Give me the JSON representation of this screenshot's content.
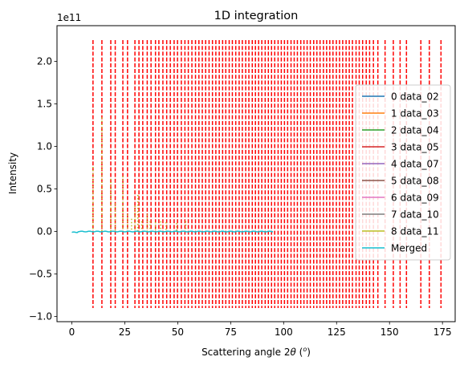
{
  "chart_data": {
    "type": "line",
    "title": "1D integration",
    "xlabel": "Scattering angle 2",
    "xlabel_symbol": "θ",
    "xlabel_unit_open": " (",
    "xlabel_unit": "o",
    "xlabel_unit_close": ")",
    "ylabel": "Intensity",
    "y_multiplier": "1e11",
    "xlim": [
      -7,
      181
    ],
    "ylim": [
      -1.06,
      2.42
    ],
    "xticks": [
      0,
      25,
      50,
      75,
      100,
      125,
      150,
      175
    ],
    "yticks": [
      -1.0,
      -0.5,
      0.0,
      0.5,
      1.0,
      1.5,
      2.0
    ],
    "ytick_labels": [
      "−1.0",
      "−0.5",
      "0.0",
      "0.5",
      "1.0",
      "1.5",
      "2.0"
    ],
    "grid": false,
    "legend_location": "center right",
    "series": [
      {
        "name": "0 data_02",
        "color": "#1f77b4"
      },
      {
        "name": "1 data_03",
        "color": "#ff7f0e"
      },
      {
        "name": "2 data_04",
        "color": "#2ca02c"
      },
      {
        "name": "3 data_05",
        "color": "#d62728"
      },
      {
        "name": "4 data_07",
        "color": "#9467bd"
      },
      {
        "name": "5 data_08",
        "color": "#8c564b"
      },
      {
        "name": "6 data_09",
        "color": "#e377c2"
      },
      {
        "name": "7 data_10",
        "color": "#7f7f7f"
      },
      {
        "name": "8 data_11",
        "color": "#bcbd22"
      },
      {
        "name": "Merged",
        "color": "#17becf"
      }
    ],
    "integrated_curve": {
      "x_range": [
        0,
        95
      ],
      "y_approx": 0.0,
      "color": "#17becf"
    },
    "peak_markers": {
      "color": "#ff0000",
      "y_range": [
        -0.9,
        2.25
      ],
      "x": [
        10.0,
        14.2,
        18.4,
        20.5,
        24.1,
        26.3,
        29.8,
        31.7,
        33.5,
        35.6,
        37.4,
        39.5,
        41.1,
        43.0,
        44.8,
        46.5,
        48.3,
        49.9,
        51.7,
        53.4,
        55.0,
        56.7,
        58.4,
        60.0,
        61.6,
        63.2,
        64.8,
        66.4,
        68.0,
        69.6,
        71.2,
        72.7,
        74.3,
        75.8,
        77.4,
        79.0,
        80.5,
        82.1,
        83.6,
        85.2,
        86.7,
        88.2,
        89.7,
        91.3,
        92.8,
        94.3,
        95.8,
        97.4,
        98.9,
        100.4,
        101.9,
        103.5,
        105.0,
        106.5,
        108.1,
        109.6,
        111.1,
        112.6,
        114.2,
        115.7,
        117.2,
        118.8,
        120.3,
        121.8,
        123.3,
        124.9,
        126.4,
        127.9,
        129.5,
        131.0,
        132.5,
        134.2,
        135.7,
        137.3,
        139.0,
        140.6,
        142.4,
        144.5,
        147.9,
        151.8,
        155.0,
        158.0,
        164.8,
        168.8,
        174.3
      ]
    },
    "secondary_markers": {
      "color": "#bcbd22",
      "y_bottom": 0.0,
      "points": [
        {
          "x": 10.0,
          "y": 0.76
        },
        {
          "x": 14.2,
          "y": 1.34
        },
        {
          "x": 18.4,
          "y": 0.62
        },
        {
          "x": 20.5,
          "y": 0.33
        },
        {
          "x": 24.1,
          "y": 0.65
        },
        {
          "x": 26.3,
          "y": 0.2
        },
        {
          "x": 28.2,
          "y": 0.15
        },
        {
          "x": 29.8,
          "y": 0.3
        },
        {
          "x": 31.2,
          "y": 0.43
        },
        {
          "x": 33.0,
          "y": 0.12
        },
        {
          "x": 35.6,
          "y": 0.2
        },
        {
          "x": 37.0,
          "y": 0.12
        },
        {
          "x": 39.5,
          "y": 0.11
        },
        {
          "x": 42.0,
          "y": 0.12
        },
        {
          "x": 44.5,
          "y": 0.11
        },
        {
          "x": 49.5,
          "y": 0.1
        },
        {
          "x": 53.8,
          "y": 0.12
        }
      ]
    }
  }
}
